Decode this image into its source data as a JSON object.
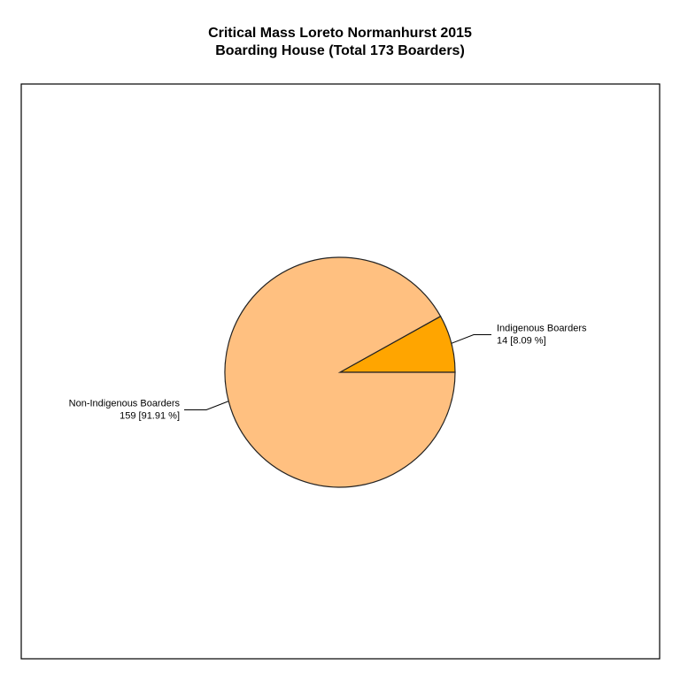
{
  "chart_data": {
    "type": "pie",
    "title": "Critical Mass Loreto Normanhurst  2015",
    "subtitle": "Boarding House (Total 173 Boarders)",
    "labels": [
      "Indigenous Boarders",
      "Non-Indigenous Boarders"
    ],
    "values": [
      14,
      159
    ],
    "value_labels": [
      "14 [8.09 %]",
      "159 [91.91 %]"
    ],
    "colors": [
      "#FFA500",
      "#FFC080"
    ]
  }
}
